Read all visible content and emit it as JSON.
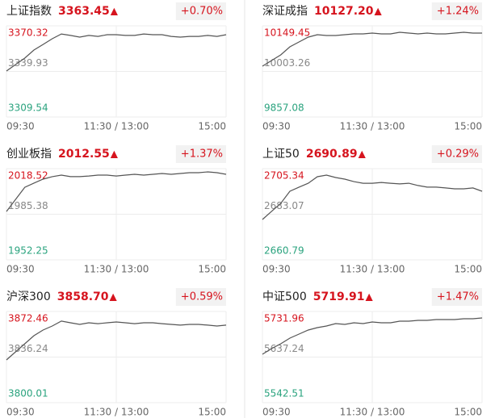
{
  "chart_data": [
    {
      "type": "line",
      "title": "上证指数",
      "price": "3363.45",
      "arrow": "▲",
      "change": "+0.70%",
      "x": [
        0,
        10,
        20,
        30,
        40,
        50,
        60,
        70,
        80,
        90,
        100,
        110,
        120,
        130,
        140,
        150,
        160,
        170,
        180,
        190,
        200,
        210,
        220,
        230,
        240
      ],
      "values": [
        3340.2,
        3344.5,
        3348.8,
        3354.2,
        3357.9,
        3361.7,
        3364.9,
        3363.9,
        3362.8,
        3363.9,
        3363.3,
        3364.4,
        3364.4,
        3363.9,
        3363.9,
        3364.9,
        3364.4,
        3364.4,
        3363.3,
        3362.8,
        3363.3,
        3363.3,
        3363.9,
        3363.3,
        3364.4
      ],
      "color": "#555555",
      "ylim": [
        3309.54,
        3370.32
      ],
      "yticks": [
        3309.54,
        3339.93,
        3370.32
      ],
      "ytick_colors": [
        "#2aa37e",
        "#888888",
        "#d6141e"
      ],
      "xlim": [
        0,
        240
      ],
      "xticks": [
        {
          "value": 0,
          "label": "09:30"
        },
        {
          "value": 120,
          "label": "11:30 / 13:00"
        },
        {
          "value": 240,
          "label": "15:00"
        }
      ],
      "grid": true
    },
    {
      "type": "line",
      "title": "深证成指",
      "price": "10127.20",
      "arrow": "▲",
      "change": "+1.24%",
      "x": [
        0,
        10,
        20,
        30,
        40,
        50,
        60,
        70,
        80,
        90,
        100,
        110,
        120,
        130,
        140,
        150,
        160,
        170,
        180,
        190,
        200,
        210,
        220,
        230,
        240
      ],
      "values": [
        10020.1,
        10038.2,
        10056.3,
        10082.2,
        10097.7,
        10113.2,
        10121.0,
        10118.4,
        10118.4,
        10121.0,
        10123.6,
        10123.6,
        10126.2,
        10123.6,
        10123.6,
        10128.8,
        10126.2,
        10123.6,
        10126.2,
        10123.6,
        10123.6,
        10126.2,
        10128.8,
        10126.2,
        10126.2
      ],
      "color": "#555555",
      "ylim": [
        9857.08,
        10149.45
      ],
      "yticks": [
        9857.08,
        10003.26,
        10149.45
      ],
      "ytick_colors": [
        "#2aa37e",
        "#888888",
        "#d6141e"
      ],
      "xlim": [
        0,
        240
      ],
      "xticks": [
        {
          "value": 0,
          "label": "09:30"
        },
        {
          "value": 120,
          "label": "11:30 / 13:00"
        },
        {
          "value": 240,
          "label": "15:00"
        }
      ],
      "grid": true
    },
    {
      "type": "line",
      "title": "创业板指",
      "price": "2012.55",
      "arrow": "▲",
      "change": "+1.37%",
      "x": [
        0,
        10,
        20,
        30,
        40,
        50,
        60,
        70,
        80,
        90,
        100,
        110,
        120,
        130,
        140,
        150,
        160,
        170,
        180,
        190,
        200,
        210,
        220,
        230,
        240
      ],
      "values": [
        1987.4,
        1996.2,
        2005.0,
        2008.0,
        2010.9,
        2012.7,
        2013.8,
        2012.7,
        2012.7,
        2013.2,
        2013.8,
        2013.8,
        2013.2,
        2013.8,
        2014.4,
        2013.8,
        2014.4,
        2015.0,
        2014.4,
        2015.0,
        2015.6,
        2015.6,
        2016.2,
        2015.6,
        2014.4
      ],
      "color": "#555555",
      "ylim": [
        1952.25,
        2018.52
      ],
      "yticks": [
        1952.25,
        1985.38,
        2018.52
      ],
      "ytick_colors": [
        "#2aa37e",
        "#888888",
        "#d6141e"
      ],
      "xlim": [
        0,
        240
      ],
      "xticks": [
        {
          "value": 0,
          "label": "09:30"
        },
        {
          "value": 120,
          "label": "11:30 / 13:00"
        },
        {
          "value": 240,
          "label": "15:00"
        }
      ],
      "grid": true
    },
    {
      "type": "line",
      "title": "上证50",
      "price": "2690.89",
      "arrow": "▲",
      "change": "+0.29%",
      "x": [
        0,
        10,
        20,
        30,
        40,
        50,
        60,
        70,
        80,
        90,
        100,
        110,
        120,
        130,
        140,
        150,
        160,
        170,
        180,
        190,
        200,
        210,
        220,
        230,
        240
      ],
      "values": [
        2680.5,
        2684.5,
        2688.4,
        2694.3,
        2696.3,
        2698.2,
        2701.4,
        2702.2,
        2701.0,
        2700.2,
        2699.0,
        2698.2,
        2698.2,
        2698.6,
        2698.2,
        2697.9,
        2698.2,
        2697.1,
        2696.3,
        2696.3,
        2695.9,
        2695.5,
        2695.5,
        2695.9,
        2694.3
      ],
      "color": "#555555",
      "ylim": [
        2660.79,
        2705.34
      ],
      "yticks": [
        2660.79,
        2683.07,
        2705.34
      ],
      "ytick_colors": [
        "#2aa37e",
        "#888888",
        "#d6141e"
      ],
      "xlim": [
        0,
        240
      ],
      "xticks": [
        {
          "value": 0,
          "label": "09:30"
        },
        {
          "value": 120,
          "label": "11:30 / 13:00"
        },
        {
          "value": 240,
          "label": "15:00"
        }
      ],
      "grid": true
    },
    {
      "type": "line",
      "title": "沪深300",
      "price": "3858.70",
      "arrow": "▲",
      "change": "+0.59%",
      "x": [
        0,
        10,
        20,
        30,
        40,
        50,
        60,
        70,
        80,
        90,
        100,
        110,
        120,
        130,
        140,
        150,
        160,
        170,
        180,
        190,
        200,
        210,
        220,
        230,
        240
      ],
      "values": [
        3834.0,
        3840.4,
        3846.8,
        3853.2,
        3857.7,
        3860.9,
        3864.8,
        3863.5,
        3862.2,
        3863.5,
        3862.8,
        3863.5,
        3864.1,
        3863.5,
        3862.8,
        3863.5,
        3863.5,
        3862.8,
        3862.2,
        3861.6,
        3862.2,
        3862.2,
        3861.6,
        3860.9,
        3861.6
      ],
      "color": "#555555",
      "ylim": [
        3800.01,
        3872.46
      ],
      "yticks": [
        3800.01,
        3836.24,
        3872.46
      ],
      "ytick_colors": [
        "#2aa37e",
        "#888888",
        "#d6141e"
      ],
      "xlim": [
        0,
        240
      ],
      "xticks": [
        {
          "value": 0,
          "label": "09:30"
        },
        {
          "value": 120,
          "label": "11:30 / 13:00"
        },
        {
          "value": 240,
          "label": "15:00"
        }
      ],
      "grid": true
    },
    {
      "type": "line",
      "title": "中证500",
      "price": "5719.91",
      "arrow": "▲",
      "change": "+1.47%",
      "x": [
        0,
        10,
        20,
        30,
        40,
        50,
        60,
        70,
        80,
        90,
        100,
        110,
        120,
        130,
        140,
        150,
        160,
        170,
        180,
        190,
        200,
        210,
        220,
        230,
        240
      ],
      "values": [
        5643.1,
        5654.8,
        5664.9,
        5676.6,
        5685.0,
        5693.4,
        5698.4,
        5701.8,
        5706.8,
        5705.1,
        5708.5,
        5706.8,
        5710.2,
        5708.5,
        5708.5,
        5711.8,
        5711.8,
        5713.5,
        5713.5,
        5715.2,
        5715.2,
        5715.2,
        5716.9,
        5716.9,
        5718.5
      ],
      "color": "#555555",
      "ylim": [
        5542.51,
        5731.96
      ],
      "yticks": [
        5542.51,
        5637.24,
        5731.96
      ],
      "ytick_colors": [
        "#2aa37e",
        "#888888",
        "#d6141e"
      ],
      "xlim": [
        0,
        240
      ],
      "xticks": [
        {
          "value": 0,
          "label": "09:30"
        },
        {
          "value": 120,
          "label": "11:30 / 13:00"
        },
        {
          "value": 240,
          "label": "15:00"
        }
      ],
      "grid": true
    }
  ]
}
